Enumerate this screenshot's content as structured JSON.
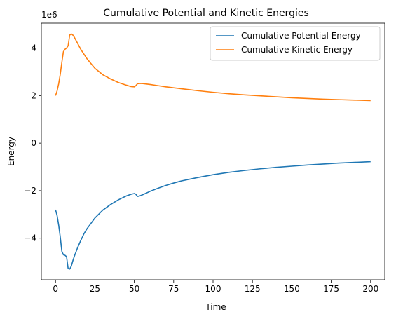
{
  "chart_data": {
    "type": "line",
    "title": "Cumulative Potential and Kinetic Energies",
    "xlabel": "Time",
    "ylabel": "Energy",
    "y_offset_label": "1e6",
    "xlim": [
      -9,
      209
    ],
    "ylim": [
      -5.75,
      5.05
    ],
    "xticks": [
      0,
      25,
      50,
      75,
      100,
      125,
      150,
      175,
      200
    ],
    "yticks": [
      -4,
      -2,
      0,
      2,
      4
    ],
    "ytick_labels": [
      "−4",
      "−2",
      "0",
      "2",
      "4"
    ],
    "grid": false,
    "legend_position": "upper-right",
    "series": [
      {
        "name": "Cumulative Potential Energy",
        "color": "#1f77b4",
        "x": [
          0,
          1,
          2,
          3,
          4,
          5,
          6,
          7,
          8,
          9,
          10,
          11,
          12,
          14,
          16,
          18,
          20,
          25,
          30,
          35,
          40,
          45,
          48,
          50,
          51,
          52,
          53,
          55,
          60,
          65,
          70,
          75,
          80,
          90,
          100,
          110,
          120,
          130,
          140,
          150,
          160,
          170,
          180,
          190,
          200
        ],
        "y": [
          -2.8,
          -3.05,
          -3.45,
          -3.95,
          -4.55,
          -4.7,
          -4.72,
          -4.78,
          -5.28,
          -5.3,
          -5.18,
          -4.95,
          -4.75,
          -4.4,
          -4.1,
          -3.82,
          -3.6,
          -3.15,
          -2.82,
          -2.58,
          -2.38,
          -2.22,
          -2.15,
          -2.12,
          -2.15,
          -2.24,
          -2.23,
          -2.18,
          -2.03,
          -1.9,
          -1.78,
          -1.68,
          -1.59,
          -1.45,
          -1.33,
          -1.23,
          -1.15,
          -1.08,
          -1.02,
          -0.97,
          -0.92,
          -0.88,
          -0.84,
          -0.81,
          -0.78
        ]
      },
      {
        "name": "Cumulative Kinetic Energy",
        "color": "#ff7f0e",
        "x": [
          0,
          1,
          2,
          3,
          4,
          5,
          6,
          7,
          8,
          9,
          10,
          11,
          12,
          14,
          16,
          18,
          20,
          25,
          30,
          35,
          40,
          45,
          48,
          50,
          51,
          52,
          53,
          55,
          60,
          65,
          70,
          75,
          80,
          90,
          100,
          110,
          120,
          130,
          140,
          150,
          160,
          170,
          180,
          190,
          200
        ],
        "y": [
          2.0,
          2.2,
          2.5,
          2.9,
          3.4,
          3.85,
          3.95,
          4.0,
          4.1,
          4.55,
          4.6,
          4.55,
          4.45,
          4.2,
          3.95,
          3.75,
          3.55,
          3.15,
          2.88,
          2.7,
          2.55,
          2.44,
          2.38,
          2.37,
          2.42,
          2.5,
          2.51,
          2.51,
          2.47,
          2.42,
          2.37,
          2.33,
          2.29,
          2.21,
          2.14,
          2.08,
          2.03,
          1.99,
          1.95,
          1.91,
          1.88,
          1.85,
          1.83,
          1.81,
          1.79
        ]
      }
    ]
  }
}
